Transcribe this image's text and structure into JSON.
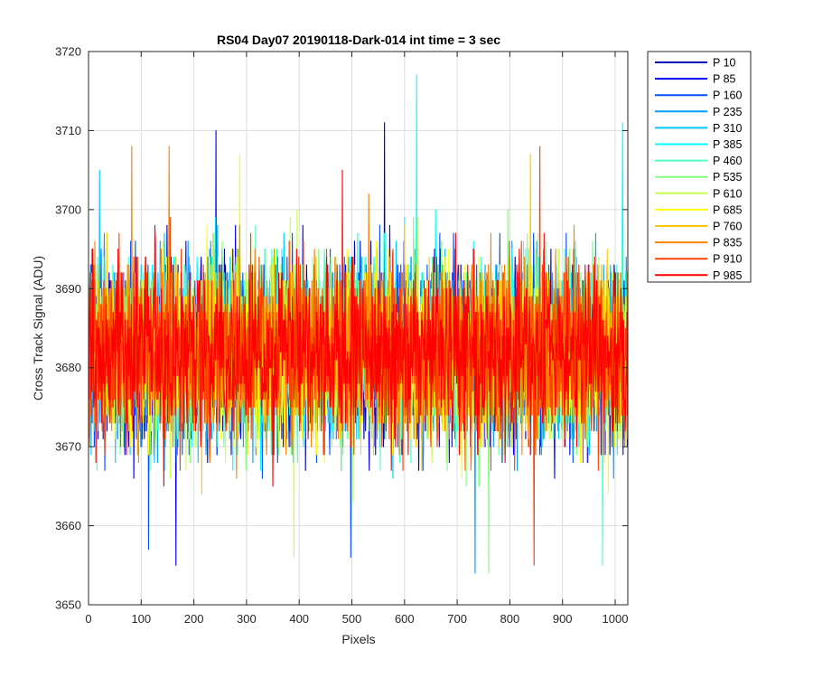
{
  "chart_data": {
    "type": "line",
    "title": "RS04 Day07 20190118-Dark-014 int time = 3 sec",
    "xlabel": "Pixels",
    "ylabel": "Cross Track Signal (ADU)",
    "xlim": [
      0,
      1024
    ],
    "ylim": [
      3650,
      3720
    ],
    "xticks": [
      "0",
      "100",
      "200",
      "300",
      "400",
      "500",
      "600",
      "700",
      "800",
      "900",
      "1000"
    ],
    "yticks": [
      "3650",
      "3660",
      "3670",
      "3680",
      "3690",
      "3700",
      "3710",
      "3720"
    ],
    "grid": true,
    "legend_position": "outside-right",
    "n_points": 1024,
    "series": [
      {
        "name": "P 10",
        "color": "#0000b4",
        "mean": 3682,
        "spread": 5.5,
        "peaks": [
          [
            561,
            3711
          ]
        ]
      },
      {
        "name": "P 85",
        "color": "#0000ff",
        "mean": 3682,
        "spread": 5.5,
        "peaks": [
          [
            241,
            3710
          ],
          [
            165,
            3655
          ]
        ]
      },
      {
        "name": "P 160",
        "color": "#0050ff",
        "mean": 3682,
        "spread": 5.5,
        "peaks": [
          [
            113,
            3657
          ],
          [
            497,
            3656
          ]
        ]
      },
      {
        "name": "P 235",
        "color": "#00a0ff",
        "mean": 3682,
        "spread": 5.5,
        "peaks": [
          [
            733,
            3654
          ]
        ]
      },
      {
        "name": "P 310",
        "color": "#00c8ff",
        "mean": 3682,
        "spread": 5.5,
        "peaks": [
          [
            20,
            3705
          ]
        ]
      },
      {
        "name": "P 385",
        "color": "#00ffff",
        "mean": 3682,
        "spread": 5.5,
        "peaks": [
          [
            622,
            3717
          ],
          [
            1013,
            3711
          ]
        ]
      },
      {
        "name": "P 460",
        "color": "#50ffc8",
        "mean": 3682,
        "spread": 5.5,
        "peaks": [
          [
            975,
            3655
          ]
        ]
      },
      {
        "name": "P 535",
        "color": "#80ff80",
        "mean": 3682,
        "spread": 5.5,
        "peaks": [
          [
            759,
            3654
          ]
        ]
      },
      {
        "name": "P 610",
        "color": "#c8ff50",
        "mean": 3682,
        "spread": 5.5,
        "peaks": [
          [
            389,
            3656
          ]
        ]
      },
      {
        "name": "P 685",
        "color": "#ffff00",
        "mean": 3682,
        "spread": 5.5,
        "peaks": [
          [
            286,
            3707
          ]
        ]
      },
      {
        "name": "P 760",
        "color": "#ffc800",
        "mean": 3682,
        "spread": 5.5,
        "peaks": [
          [
            838,
            3707
          ]
        ]
      },
      {
        "name": "P 835",
        "color": "#ff8000",
        "mean": 3682,
        "spread": 5.5,
        "peaks": [
          [
            81,
            3708
          ],
          [
            152,
            3708
          ]
        ]
      },
      {
        "name": "P 910",
        "color": "#ff4000",
        "mean": 3682,
        "spread": 5.5,
        "peaks": [
          [
            856,
            3708
          ],
          [
            845,
            3655
          ]
        ]
      },
      {
        "name": "P 985",
        "color": "#ff0000",
        "mean": 3682,
        "spread": 5.5,
        "peaks": [
          [
            481,
            3705
          ]
        ]
      }
    ]
  }
}
